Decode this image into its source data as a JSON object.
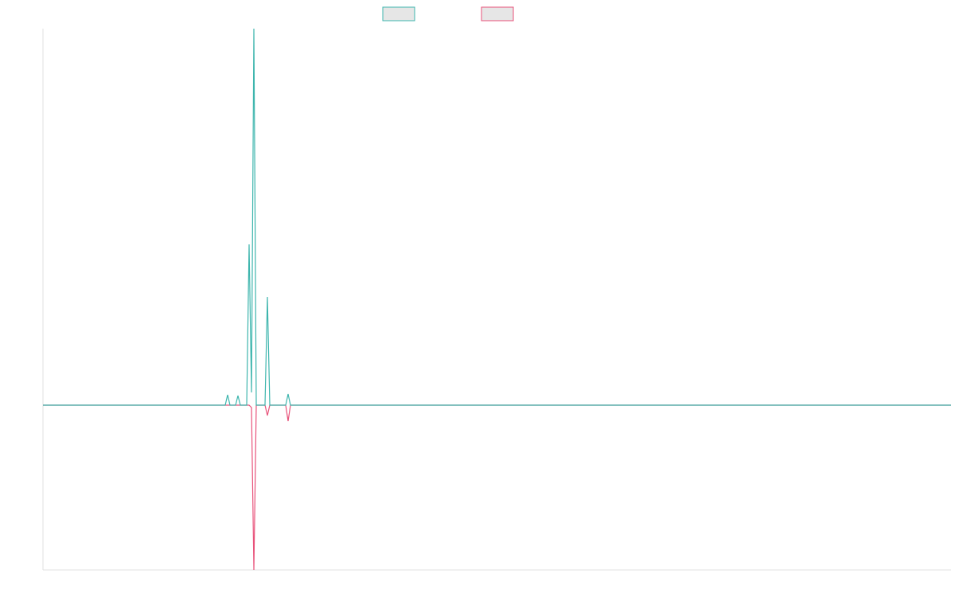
{
  "chart_data": {
    "type": "line",
    "x": [
      0,
      229,
      232,
      235,
      242,
      245,
      248,
      256,
      259,
      262,
      265,
      268,
      279,
      282,
      285,
      305,
      308,
      311,
      1141
    ],
    "series": [
      {
        "color": "#e8527a",
        "values": [
          0,
          0,
          0,
          0,
          0,
          0,
          0,
          0,
          0,
          -3,
          -207,
          0,
          0,
          -13,
          0,
          0,
          -20,
          0,
          0
        ]
      },
      {
        "color": "#3db5ad",
        "values": [
          0,
          0,
          13,
          0,
          0,
          12,
          0,
          0,
          202,
          16,
          473,
          0,
          0,
          136,
          0,
          0,
          14,
          0,
          0
        ]
      }
    ],
    "xlim": [
      0,
      1141
    ],
    "ylim": [
      -207,
      473
    ],
    "legend": "top"
  }
}
